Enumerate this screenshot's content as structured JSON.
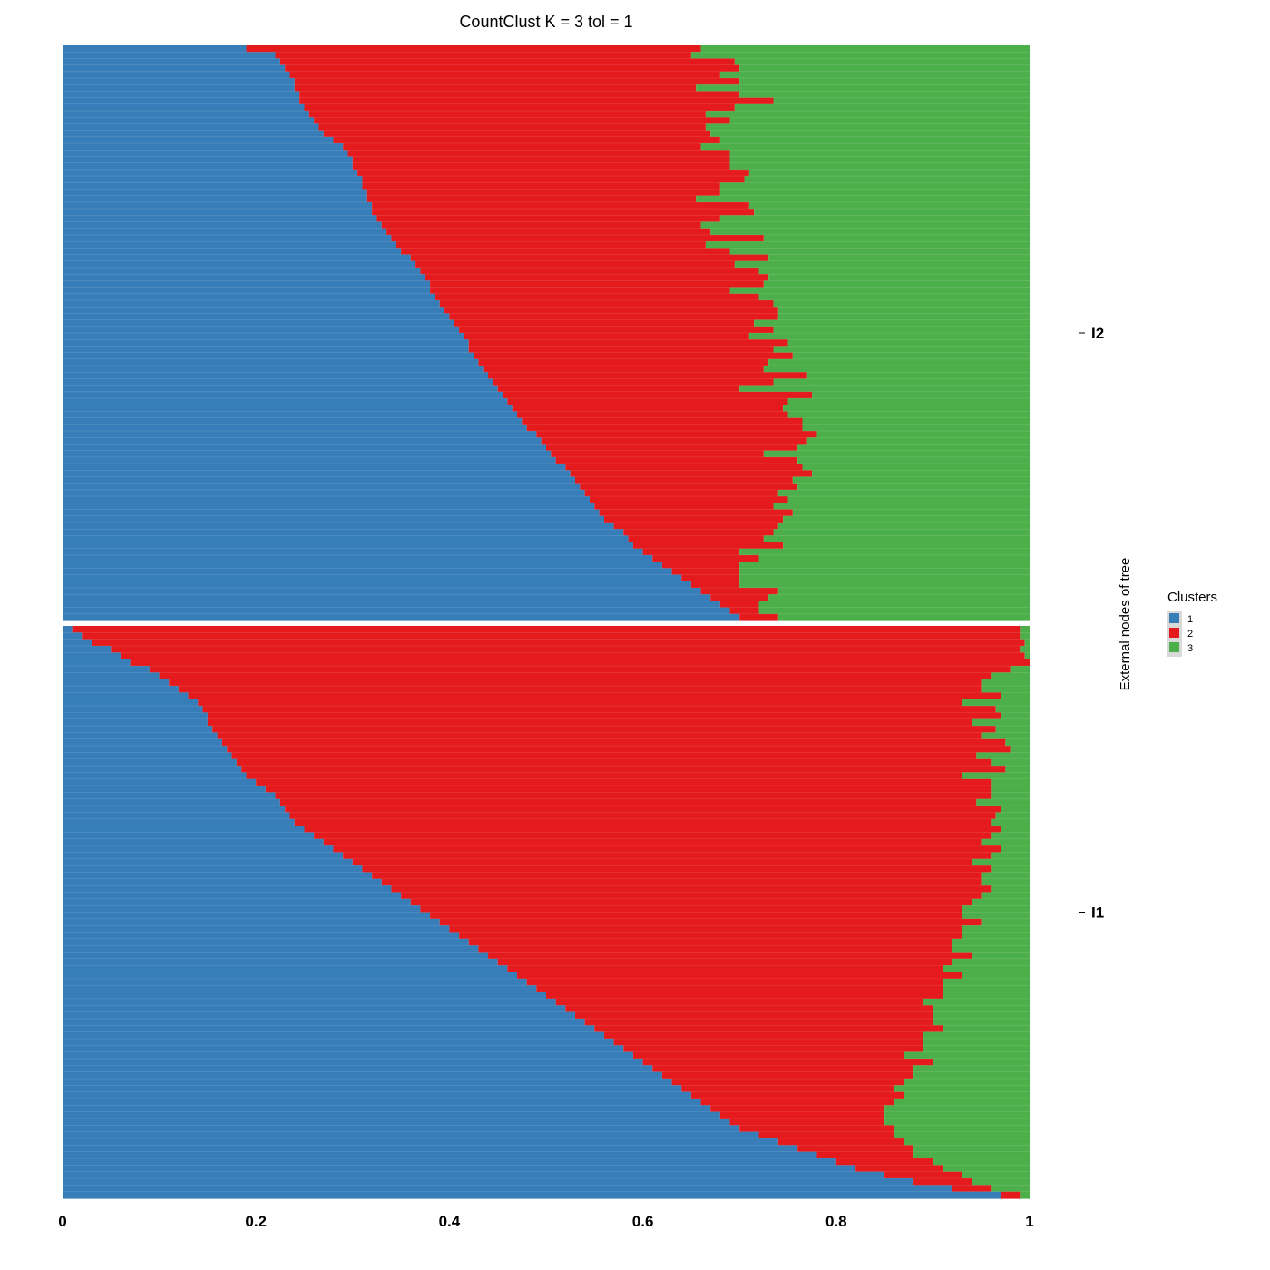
{
  "chart_data": {
    "type": "stacked-bar-horizontal",
    "title": "CountClust K =  3 tol =  1",
    "ylabel": "External nodes of tree",
    "xlim": [
      0,
      1
    ],
    "x_ticks": [
      "0",
      "0.2",
      "0.4",
      "0.6",
      "0.8",
      "1"
    ],
    "legend": {
      "title": "Clusters",
      "placement": "right",
      "entries": [
        "1",
        "2",
        "3"
      ]
    },
    "colors": {
      "1": "#377EB8",
      "2": "#E41A1C",
      "3": "#4DAF4A"
    },
    "groups": [
      {
        "label": "I2",
        "clusters": [
          "1",
          "2",
          "3"
        ],
        "rows": [
          [
            0.19,
            0.47
          ],
          [
            0.22,
            0.43
          ],
          [
            0.225,
            0.47
          ],
          [
            0.23,
            0.47
          ],
          [
            0.235,
            0.445
          ],
          [
            0.24,
            0.46
          ],
          [
            0.24,
            0.415
          ],
          [
            0.245,
            0.455
          ],
          [
            0.245,
            0.49
          ],
          [
            0.25,
            0.445
          ],
          [
            0.255,
            0.41
          ],
          [
            0.26,
            0.43
          ],
          [
            0.265,
            0.4
          ],
          [
            0.27,
            0.4
          ],
          [
            0.28,
            0.4
          ],
          [
            0.29,
            0.37
          ],
          [
            0.295,
            0.395
          ],
          [
            0.3,
            0.39
          ],
          [
            0.3,
            0.39
          ],
          [
            0.305,
            0.405
          ],
          [
            0.31,
            0.395
          ],
          [
            0.31,
            0.37
          ],
          [
            0.315,
            0.365
          ],
          [
            0.315,
            0.34
          ],
          [
            0.32,
            0.39
          ],
          [
            0.32,
            0.395
          ],
          [
            0.325,
            0.355
          ],
          [
            0.33,
            0.33
          ],
          [
            0.335,
            0.335
          ],
          [
            0.34,
            0.385
          ],
          [
            0.345,
            0.32
          ],
          [
            0.35,
            0.34
          ],
          [
            0.36,
            0.37
          ],
          [
            0.365,
            0.33
          ],
          [
            0.37,
            0.35
          ],
          [
            0.375,
            0.355
          ],
          [
            0.38,
            0.345
          ],
          [
            0.38,
            0.31
          ],
          [
            0.385,
            0.335
          ],
          [
            0.39,
            0.345
          ],
          [
            0.395,
            0.345
          ],
          [
            0.4,
            0.34
          ],
          [
            0.405,
            0.31
          ],
          [
            0.41,
            0.325
          ],
          [
            0.415,
            0.295
          ],
          [
            0.42,
            0.33
          ],
          [
            0.42,
            0.315
          ],
          [
            0.425,
            0.33
          ],
          [
            0.43,
            0.3
          ],
          [
            0.435,
            0.29
          ],
          [
            0.44,
            0.33
          ],
          [
            0.445,
            0.29
          ],
          [
            0.45,
            0.25
          ],
          [
            0.455,
            0.32
          ],
          [
            0.46,
            0.29
          ],
          [
            0.465,
            0.28
          ],
          [
            0.47,
            0.28
          ],
          [
            0.475,
            0.29
          ],
          [
            0.48,
            0.285
          ],
          [
            0.49,
            0.29
          ],
          [
            0.495,
            0.275
          ],
          [
            0.5,
            0.26
          ],
          [
            0.505,
            0.22
          ],
          [
            0.51,
            0.25
          ],
          [
            0.52,
            0.245
          ],
          [
            0.525,
            0.25
          ],
          [
            0.53,
            0.225
          ],
          [
            0.535,
            0.225
          ],
          [
            0.54,
            0.2
          ],
          [
            0.545,
            0.205
          ],
          [
            0.55,
            0.185
          ],
          [
            0.555,
            0.2
          ],
          [
            0.56,
            0.185
          ],
          [
            0.57,
            0.17
          ],
          [
            0.58,
            0.155
          ],
          [
            0.585,
            0.14
          ],
          [
            0.59,
            0.155
          ],
          [
            0.6,
            0.1
          ],
          [
            0.61,
            0.11
          ],
          [
            0.62,
            0.08
          ],
          [
            0.63,
            0.07
          ],
          [
            0.64,
            0.06
          ],
          [
            0.65,
            0.05
          ],
          [
            0.66,
            0.08
          ],
          [
            0.67,
            0.06
          ],
          [
            0.68,
            0.04
          ],
          [
            0.69,
            0.03
          ],
          [
            0.7,
            0.04
          ]
        ]
      },
      {
        "label": "I1",
        "clusters": [
          "1",
          "2",
          "3"
        ],
        "rows": [
          [
            0.01,
            0.98
          ],
          [
            0.02,
            0.97
          ],
          [
            0.03,
            0.965
          ],
          [
            0.05,
            0.94
          ],
          [
            0.06,
            0.935
          ],
          [
            0.07,
            0.93
          ],
          [
            0.09,
            0.89
          ],
          [
            0.1,
            0.86
          ],
          [
            0.11,
            0.84
          ],
          [
            0.12,
            0.83
          ],
          [
            0.13,
            0.84
          ],
          [
            0.14,
            0.79
          ],
          [
            0.145,
            0.82
          ],
          [
            0.15,
            0.82
          ],
          [
            0.15,
            0.79
          ],
          [
            0.155,
            0.81
          ],
          [
            0.16,
            0.79
          ],
          [
            0.165,
            0.81
          ],
          [
            0.17,
            0.81
          ],
          [
            0.175,
            0.77
          ],
          [
            0.18,
            0.78
          ],
          [
            0.185,
            0.79
          ],
          [
            0.19,
            0.74
          ],
          [
            0.2,
            0.76
          ],
          [
            0.21,
            0.75
          ],
          [
            0.22,
            0.74
          ],
          [
            0.225,
            0.72
          ],
          [
            0.23,
            0.74
          ],
          [
            0.235,
            0.73
          ],
          [
            0.24,
            0.72
          ],
          [
            0.25,
            0.72
          ],
          [
            0.26,
            0.7
          ],
          [
            0.27,
            0.68
          ],
          [
            0.28,
            0.69
          ],
          [
            0.29,
            0.67
          ],
          [
            0.3,
            0.64
          ],
          [
            0.31,
            0.65
          ],
          [
            0.32,
            0.63
          ],
          [
            0.33,
            0.62
          ],
          [
            0.34,
            0.62
          ],
          [
            0.35,
            0.6
          ],
          [
            0.36,
            0.58
          ],
          [
            0.37,
            0.56
          ],
          [
            0.38,
            0.55
          ],
          [
            0.39,
            0.56
          ],
          [
            0.4,
            0.53
          ],
          [
            0.41,
            0.52
          ],
          [
            0.42,
            0.5
          ],
          [
            0.43,
            0.49
          ],
          [
            0.44,
            0.5
          ],
          [
            0.45,
            0.47
          ],
          [
            0.46,
            0.45
          ],
          [
            0.47,
            0.46
          ],
          [
            0.48,
            0.43
          ],
          [
            0.49,
            0.42
          ],
          [
            0.5,
            0.41
          ],
          [
            0.51,
            0.38
          ],
          [
            0.52,
            0.38
          ],
          [
            0.53,
            0.37
          ],
          [
            0.54,
            0.36
          ],
          [
            0.55,
            0.36
          ],
          [
            0.56,
            0.33
          ],
          [
            0.57,
            0.32
          ],
          [
            0.58,
            0.31
          ],
          [
            0.59,
            0.28
          ],
          [
            0.6,
            0.3
          ],
          [
            0.61,
            0.27
          ],
          [
            0.62,
            0.26
          ],
          [
            0.63,
            0.24
          ],
          [
            0.64,
            0.22
          ],
          [
            0.65,
            0.22
          ],
          [
            0.66,
            0.2
          ],
          [
            0.67,
            0.18
          ],
          [
            0.68,
            0.17
          ],
          [
            0.69,
            0.16
          ],
          [
            0.7,
            0.16
          ],
          [
            0.72,
            0.14
          ],
          [
            0.74,
            0.13
          ],
          [
            0.76,
            0.12
          ],
          [
            0.78,
            0.1
          ],
          [
            0.8,
            0.1
          ],
          [
            0.82,
            0.09
          ],
          [
            0.85,
            0.08
          ],
          [
            0.88,
            0.06
          ],
          [
            0.92,
            0.04
          ],
          [
            0.97,
            0.02
          ]
        ]
      }
    ]
  }
}
